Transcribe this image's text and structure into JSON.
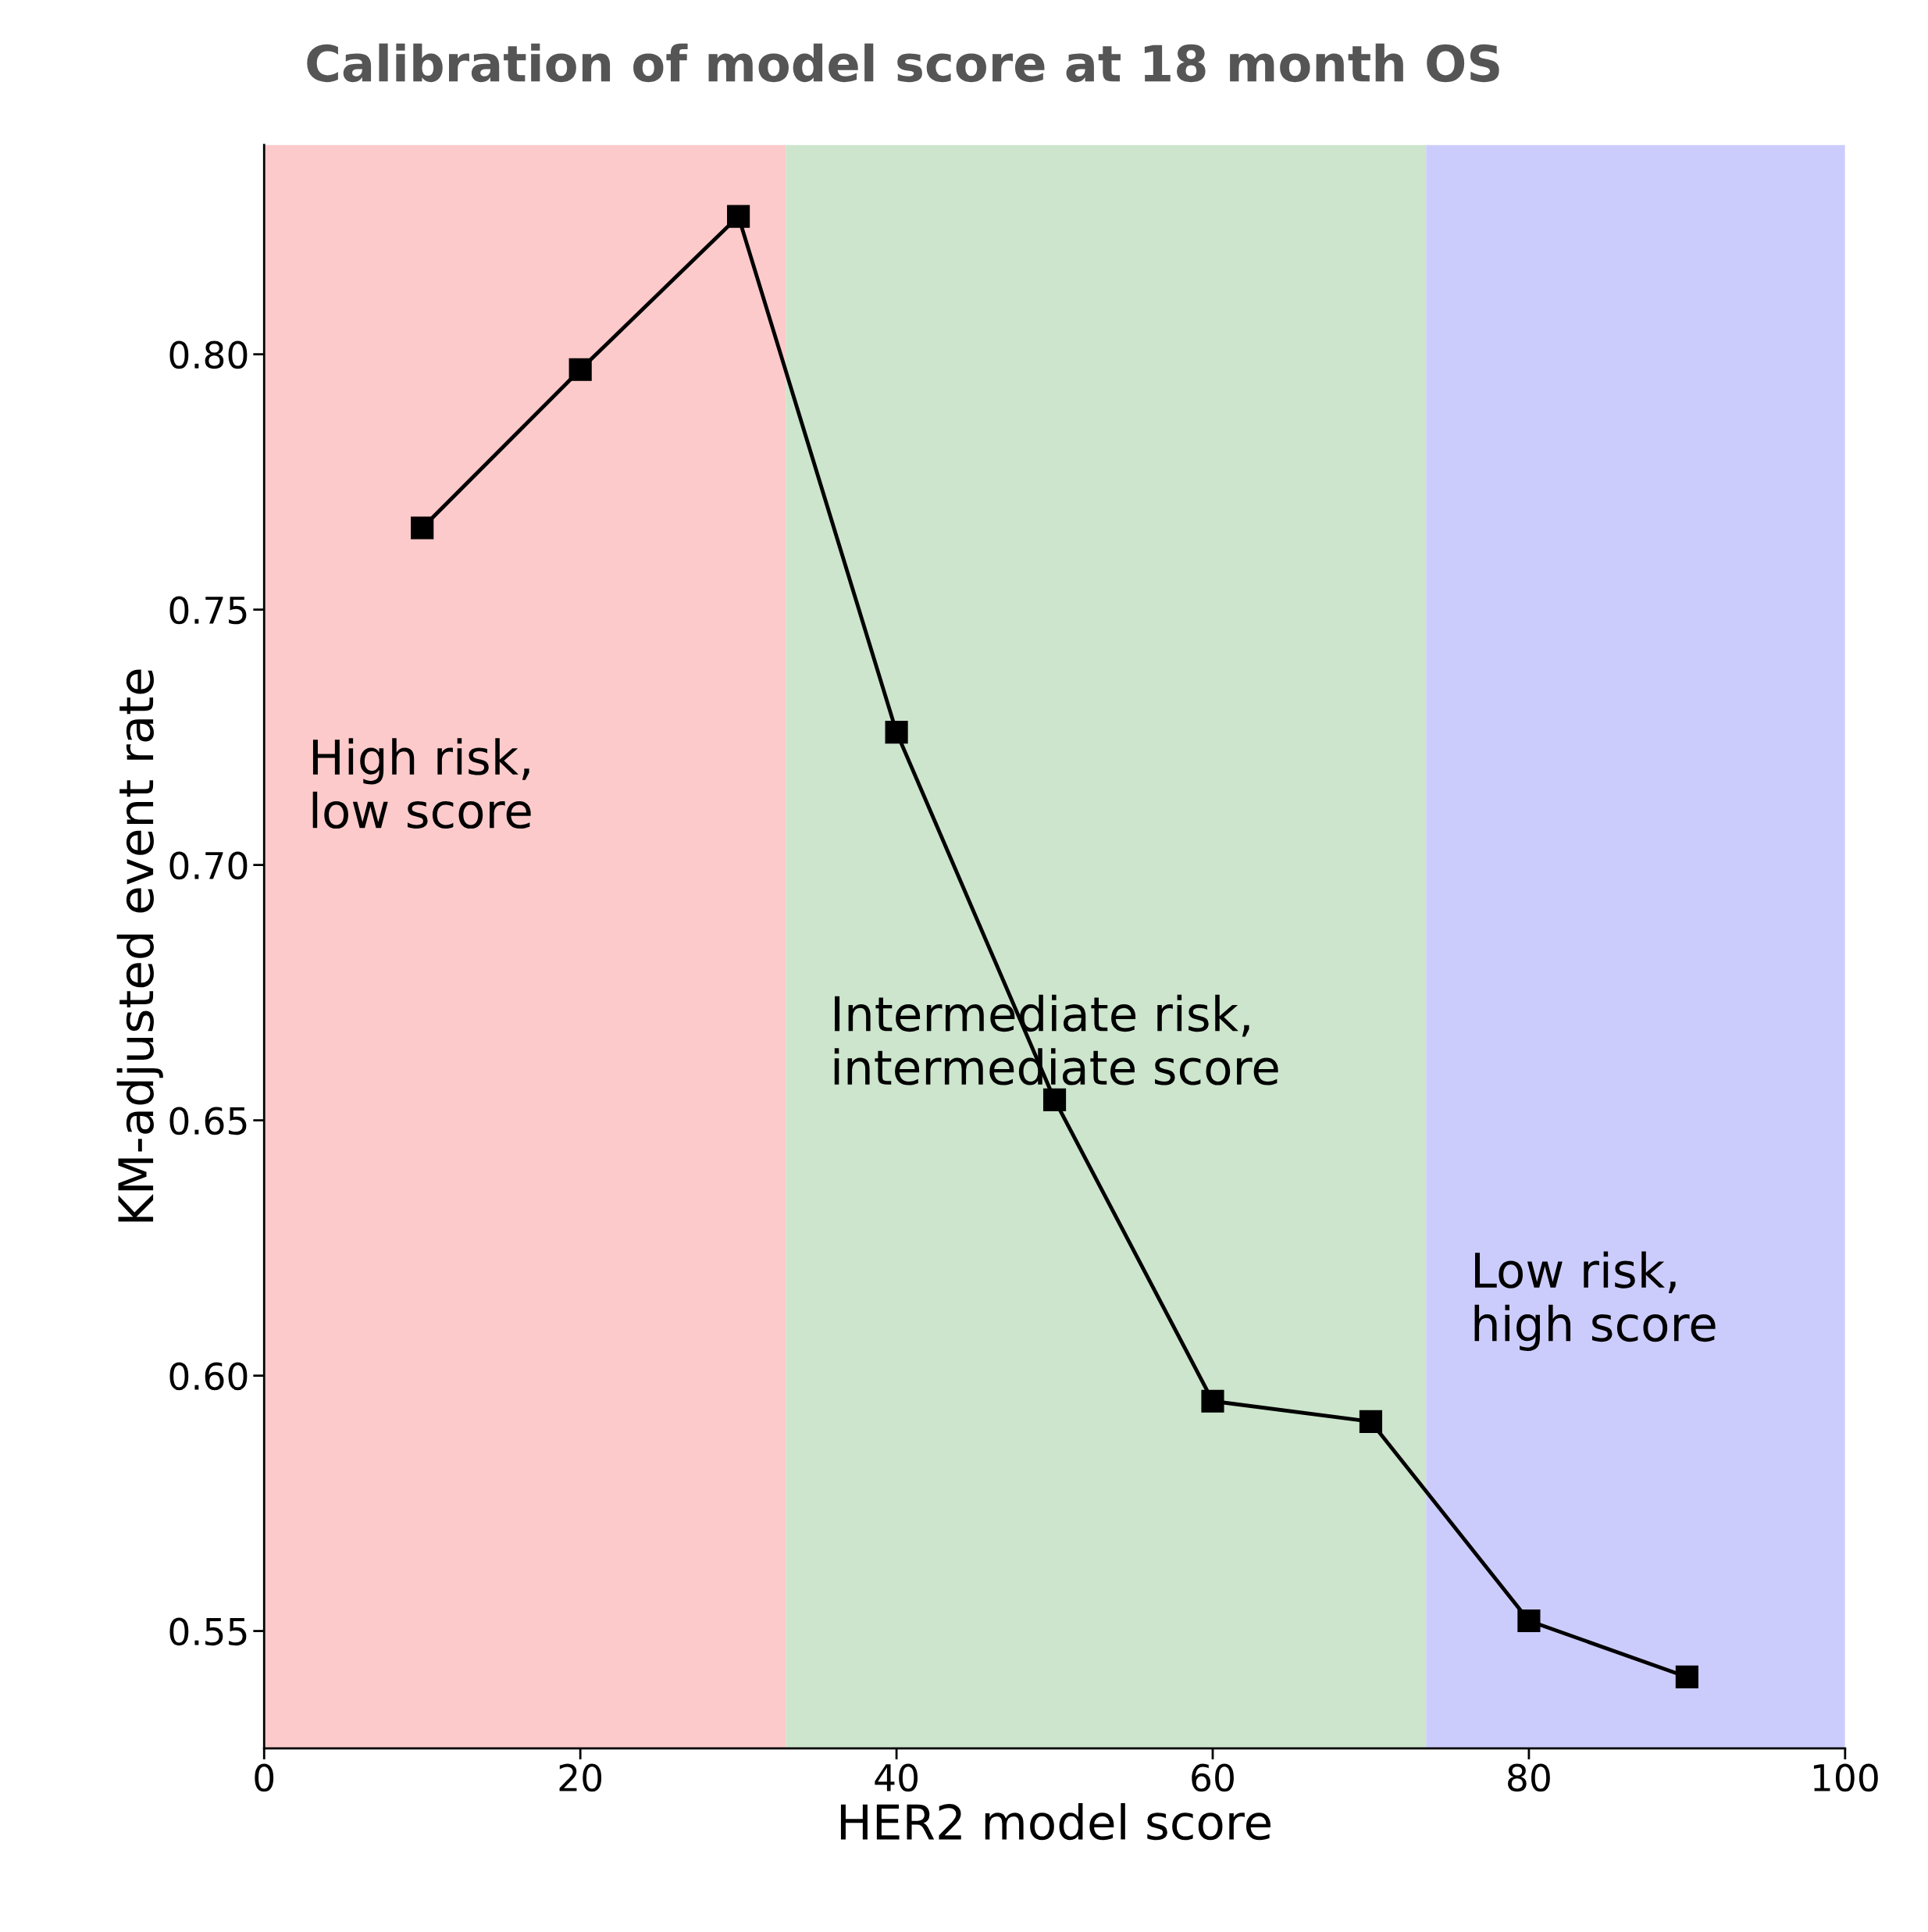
{
  "chart_data": {
    "type": "line",
    "title": "Calibration of model score at 18 month OS",
    "xlabel": "HER2 model score",
    "ylabel": "KM-adjusted event rate",
    "x": [
      10,
      20,
      30,
      40,
      50,
      60,
      70,
      80,
      90
    ],
    "series": [
      {
        "color": "#000000",
        "values": [
          0.766,
          0.797,
          0.827,
          0.726,
          0.654,
          0.595,
          0.591,
          0.552,
          0.541
        ]
      }
    ],
    "marker": "square",
    "line_style": "solid",
    "xlim": [
      0,
      100
    ],
    "ylim": [
      0.527,
      0.841
    ],
    "xticks": [
      0,
      20,
      40,
      60,
      80,
      100
    ],
    "yticks": [
      {
        "value": 0.55,
        "label": "0.55"
      },
      {
        "value": 0.6,
        "label": "0.60"
      },
      {
        "value": 0.65,
        "label": "0.65"
      },
      {
        "value": 0.7,
        "label": "0.70"
      },
      {
        "value": 0.75,
        "label": "0.75"
      },
      {
        "value": 0.8,
        "label": "0.80"
      }
    ],
    "bands": [
      {
        "axis": "x",
        "from": 0,
        "to": 33,
        "label": "High risk,\nlow score",
        "color": "#fccaca"
      },
      {
        "axis": "x",
        "from": 33,
        "to": 73.5,
        "label": "Intermediate risk,\nintermediate score",
        "color": "#cce5cc"
      },
      {
        "axis": "x",
        "from": 73.5,
        "to": 100,
        "label": "Low risk,\nhigh score",
        "color": "#ccccfc"
      }
    ],
    "grid": false
  }
}
